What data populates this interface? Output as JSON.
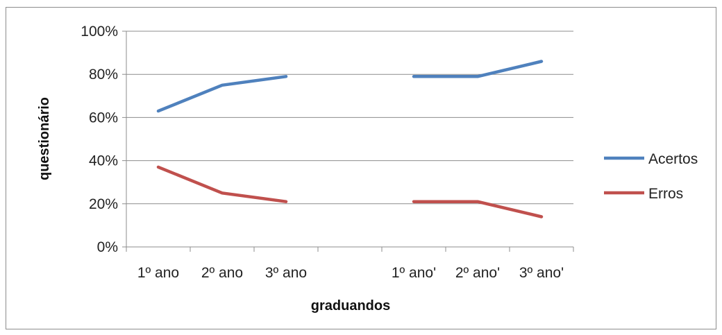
{
  "chart_data": {
    "type": "line",
    "categories": [
      "1º ano",
      "2º ano",
      "3º ano",
      "",
      "1º ano'",
      "2º ano'",
      "3º ano'"
    ],
    "series": [
      {
        "name": "Acertos",
        "color": "#4f81bd",
        "values": [
          63,
          75,
          79,
          null,
          79,
          79,
          86
        ]
      },
      {
        "name": "Erros",
        "color": "#c0504d",
        "values": [
          37,
          25,
          21,
          null,
          21,
          21,
          14
        ]
      }
    ],
    "xlabel": "graduandos",
    "ylabel": "questionário",
    "ylim": [
      0,
      100
    ],
    "yticks": [
      0,
      20,
      40,
      60,
      80,
      100
    ],
    "ytick_labels": [
      "0%",
      "20%",
      "40%",
      "60%",
      "80%",
      "100%"
    ],
    "grid": true,
    "legend_position": "right"
  }
}
